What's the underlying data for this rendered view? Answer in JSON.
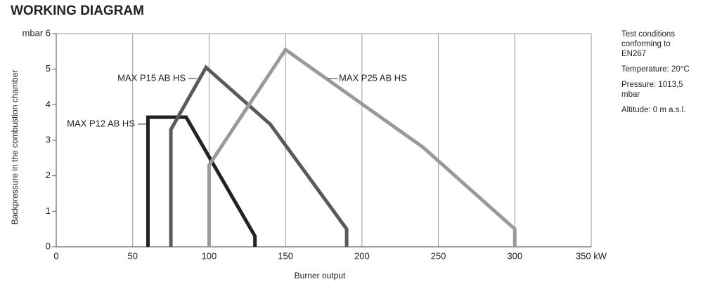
{
  "chart_data": {
    "type": "line",
    "title": "WORKING DIAGRAM",
    "y_label": "Backpressure in the combustion chamber",
    "x_label": "Burner output",
    "xlim": [
      0,
      350
    ],
    "xticks": [
      0,
      50,
      100,
      150,
      200,
      250,
      300,
      {
        "value": 350,
        "label": "350 kW"
      }
    ],
    "ylim": [
      0,
      6
    ],
    "yticks": [
      0,
      1,
      2,
      3,
      4,
      5,
      {
        "value": 6,
        "label": "mbar 6"
      }
    ],
    "grid": true,
    "series": [
      {
        "name": "MAX P12 AB HS",
        "color": "#222222",
        "x": [
          60,
          60,
          85,
          130,
          130
        ],
        "values": [
          0,
          3.65,
          3.65,
          0.3,
          0
        ]
      },
      {
        "name": "MAX P15 AB HS",
        "color": "#5a5a5a",
        "x": [
          75,
          75,
          98,
          140,
          190,
          190
        ],
        "values": [
          0,
          3.3,
          5.05,
          3.45,
          0.5,
          0
        ]
      },
      {
        "name": "MAX P25 AB HS",
        "color": "#9a9a9a",
        "x": [
          100,
          100,
          150,
          240,
          300,
          300
        ],
        "values": [
          0,
          2.3,
          5.55,
          2.8,
          0.5,
          0
        ]
      }
    ],
    "notes": [
      "Test conditions conforming to EN267",
      "Temperature: 20°C",
      "Pressure: 1013,5 mbar",
      "Altitude: 0 m a.s.l."
    ]
  }
}
